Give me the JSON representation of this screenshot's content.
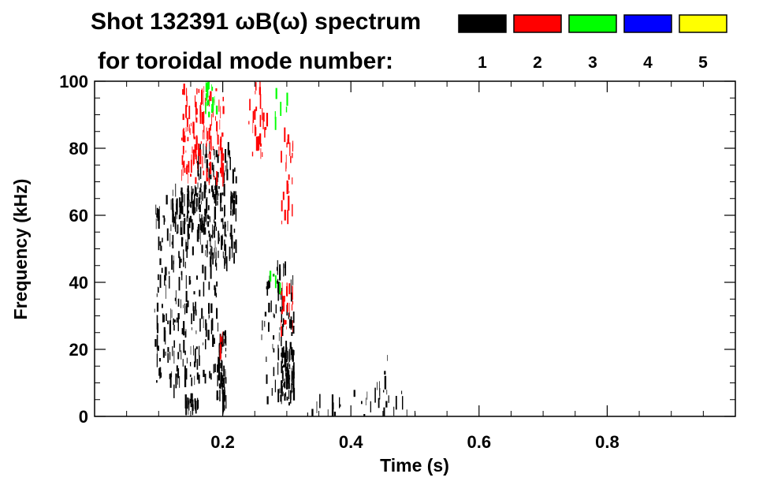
{
  "chart_data": {
    "type": "heatmap",
    "title_line1": "Shot 132391 ωB(ω) spectrum",
    "title_line2": "for toroidal mode number:",
    "xlabel": "Time (s)",
    "ylabel": "Frequency (kHz)",
    "xlim": [
      0,
      1.0
    ],
    "ylim": [
      0,
      100
    ],
    "xticks": [
      {
        "value": 0.2,
        "label": "0.2"
      },
      {
        "value": 0.4,
        "label": "0.4"
      },
      {
        "value": 0.6,
        "label": "0.6"
      },
      {
        "value": 0.8,
        "label": "0.8"
      }
    ],
    "yticks": [
      {
        "value": 0,
        "label": "0"
      },
      {
        "value": 20,
        "label": "20"
      },
      {
        "value": 40,
        "label": "40"
      },
      {
        "value": 60,
        "label": "60"
      },
      {
        "value": 80,
        "label": "80"
      },
      {
        "value": 100,
        "label": "100"
      }
    ],
    "legend": [
      {
        "mode": "1",
        "color": "#000000"
      },
      {
        "mode": "2",
        "color": "#ff0000"
      },
      {
        "mode": "3",
        "color": "#00ff00"
      },
      {
        "mode": "4",
        "color": "#0000ff"
      },
      {
        "mode": "5",
        "color": "#ffff00"
      }
    ],
    "legend_placement": "top-right",
    "features": [
      {
        "mode": 1,
        "t": [
          0.09,
          0.19
        ],
        "f": [
          10,
          65
        ],
        "density": 0.8,
        "count": 230
      },
      {
        "mode": 1,
        "t": [
          0.12,
          0.16
        ],
        "f": [
          55,
          68
        ],
        "density": 0.8,
        "count": 60
      },
      {
        "mode": 1,
        "t": [
          0.16,
          0.22
        ],
        "f": [
          45,
          80
        ],
        "density": 0.85,
        "count": 170
      },
      {
        "mode": 1,
        "t": [
          0.19,
          0.205
        ],
        "f": [
          2,
          25
        ],
        "density": 0.9,
        "count": 60
      },
      {
        "mode": 1,
        "t": [
          0.14,
          0.16
        ],
        "f": [
          2,
          5
        ],
        "density": 0.9,
        "count": 20
      },
      {
        "mode": 1,
        "t": [
          0.26,
          0.31
        ],
        "f": [
          2,
          45
        ],
        "density": 0.6,
        "count": 110
      },
      {
        "mode": 1,
        "t": [
          0.29,
          0.31
        ],
        "f": [
          5,
          20
        ],
        "density": 0.9,
        "count": 60
      },
      {
        "mode": 1,
        "t": [
          0.33,
          0.5
        ],
        "f": [
          0,
          8
        ],
        "density": 0.35,
        "count": 50
      },
      {
        "mode": 1,
        "t": [
          0.44,
          0.46
        ],
        "f": [
          3,
          18
        ],
        "density": 0.6,
        "count": 15
      },
      {
        "mode": 1,
        "t": [
          0.12,
          0.2
        ],
        "f": [
          0,
          30
        ],
        "density": 0.4,
        "count": 40
      },
      {
        "mode": 2,
        "t": [
          0.135,
          0.2
        ],
        "f": [
          70,
          98
        ],
        "density": 0.8,
        "count": 140
      },
      {
        "mode": 2,
        "t": [
          0.24,
          0.27
        ],
        "f": [
          78,
          100
        ],
        "density": 0.5,
        "count": 40
      },
      {
        "mode": 2,
        "t": [
          0.29,
          0.31
        ],
        "f": [
          55,
          85
        ],
        "density": 0.5,
        "count": 40
      },
      {
        "mode": 2,
        "t": [
          0.29,
          0.31
        ],
        "f": [
          22,
          40
        ],
        "density": 0.5,
        "count": 30
      },
      {
        "mode": 2,
        "t": [
          0.195,
          0.2
        ],
        "f": [
          18,
          24
        ],
        "density": 0.8,
        "count": 10
      },
      {
        "mode": 3,
        "t": [
          0.17,
          0.19
        ],
        "f": [
          90,
          100
        ],
        "density": 0.6,
        "count": 25
      },
      {
        "mode": 3,
        "t": [
          0.28,
          0.3
        ],
        "f": [
          80,
          98
        ],
        "density": 0.4,
        "count": 15
      },
      {
        "mode": 3,
        "t": [
          0.27,
          0.29
        ],
        "f": [
          38,
          45
        ],
        "density": 0.4,
        "count": 8
      }
    ]
  }
}
